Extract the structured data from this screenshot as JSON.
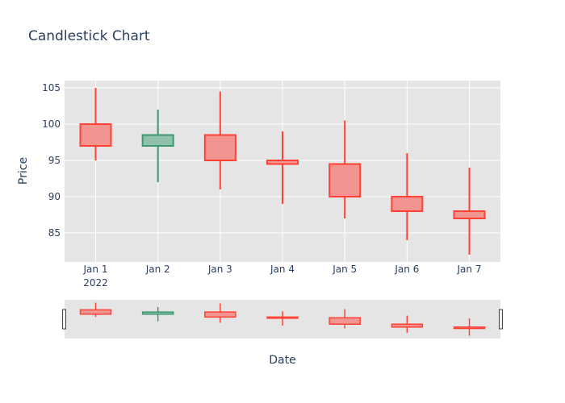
{
  "chart_data": {
    "type": "candlestick",
    "title": "Candlestick Chart",
    "xlabel": "Date",
    "ylabel": "Price",
    "x_year_label": "2022",
    "categories": [
      "Jan 1",
      "Jan 2",
      "Jan 3",
      "Jan 4",
      "Jan 5",
      "Jan 6",
      "Jan 7"
    ],
    "ohlc": [
      {
        "open": 100.0,
        "high": 105.0,
        "low": 95.0,
        "close": 97.0
      },
      {
        "open": 97.0,
        "high": 102.0,
        "low": 92.0,
        "close": 98.5
      },
      {
        "open": 98.5,
        "high": 104.5,
        "low": 91.0,
        "close": 95.0
      },
      {
        "open": 95.0,
        "high": 99.0,
        "low": 89.0,
        "close": 94.5
      },
      {
        "open": 94.5,
        "high": 100.5,
        "low": 87.0,
        "close": 90.0
      },
      {
        "open": 90.0,
        "high": 96.0,
        "low": 84.0,
        "close": 88.0
      },
      {
        "open": 88.0,
        "high": 94.0,
        "low": 82.0,
        "close": 87.0
      }
    ],
    "ylim": [
      81,
      106
    ],
    "yticks": [
      85,
      90,
      95,
      100,
      105
    ],
    "grid": true,
    "rangeslider": true,
    "colors": {
      "increasing_line": "#3d9970",
      "increasing_fill": "#8fc0a9",
      "decreasing_line": "#ff4136",
      "decreasing_fill": "#f29591",
      "plot_bg": "#e5e5e5",
      "grid": "#ffffff",
      "text": "#2a3f5f"
    }
  }
}
